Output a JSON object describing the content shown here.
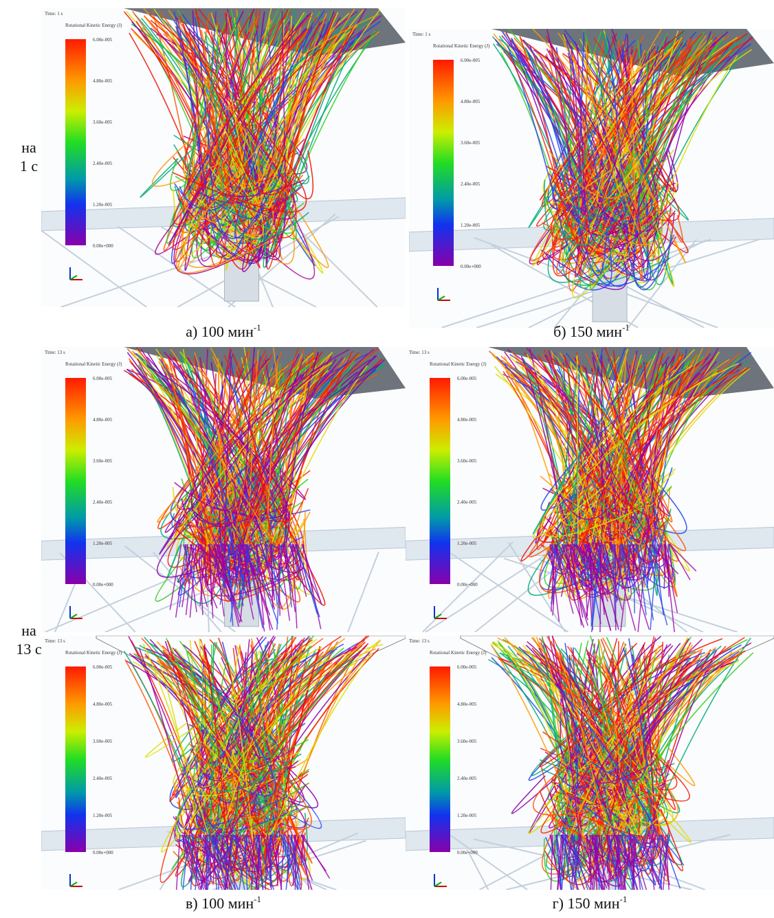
{
  "side_labels": [
    {
      "lines": [
        "на",
        "1 с"
      ]
    },
    {
      "lines": [
        "на",
        "13 с"
      ]
    }
  ],
  "panels": [
    {
      "time": "Time: 1 s",
      "legend_title": "Rotational Kinetic Energy (J)",
      "ticks": [
        "6.00e-005",
        "4.80e-005",
        "3.60e-005",
        "2.40e-005",
        "1.20e-005",
        "0.00e+000"
      ],
      "caption": {
        "text": "а) 100 мин",
        "sup": "-1"
      }
    },
    {
      "time": "Time: 1 s",
      "legend_title": "Rotational Kinetic Energy (J)",
      "ticks": [
        "6.00e-005",
        "4.80e-005",
        "3.60e-005",
        "2.40e-005",
        "1.20e-005",
        "0.00e+000"
      ],
      "caption": {
        "text": "б) 150 мин",
        "sup": "-1"
      }
    },
    {
      "time": "Time: 13 s",
      "legend_title": "Rotational Kinetic Energy (J)",
      "ticks": [
        "6.00e-005",
        "4.80e-005",
        "3.60e-005",
        "2.40e-005",
        "1.20e-005",
        "0.00e+000"
      ]
    },
    {
      "time": "Time: 13 s",
      "legend_title": "Rotational Kinetic Energy (J)",
      "ticks": [
        "6.00e-005",
        "4.80e-005",
        "3.60e-005",
        "2.40e-005",
        "1.20e-005",
        "0.00e+000"
      ]
    },
    {
      "time": "Time: 13 s",
      "legend_title": "Rotational Kinetic Energy (J)",
      "ticks": [
        "6.00e-005",
        "4.80e-005",
        "3.60e-005",
        "2.40e-005",
        "1.20e-005",
        "0.00e+000"
      ],
      "caption": {
        "text": "в) 100 мин",
        "sup": "-1"
      }
    },
    {
      "time": "Time: 13 s",
      "legend_title": "Rotational Kinetic Energy (J)",
      "ticks": [
        "6.00e-005",
        "4.80e-005",
        "3.60e-005",
        "2.40e-005",
        "1.20e-005",
        "0.00e+000"
      ],
      "caption": {
        "text": "г) 150 мин",
        "sup": "-1"
      }
    }
  ]
}
